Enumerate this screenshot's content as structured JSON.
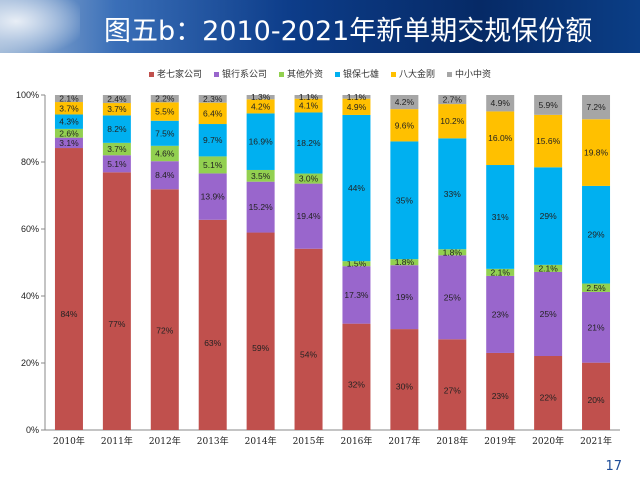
{
  "header": {
    "title": "图五b：2010-2021年新单期交规保份额"
  },
  "page_number": "17",
  "chart_data": {
    "type": "bar",
    "stacked": true,
    "title": "",
    "xlabel": "",
    "ylabel": "",
    "ylim": [
      0,
      100
    ],
    "yticks": [
      "0%",
      "20%",
      "40%",
      "60%",
      "80%",
      "100%"
    ],
    "legend_position": "top",
    "categories": [
      "2010年",
      "2011年",
      "2012年",
      "2013年",
      "2014年",
      "2015年",
      "2016年",
      "2017年",
      "2018年",
      "2019年",
      "2020年",
      "2021年"
    ],
    "series": [
      {
        "name": "老七家公司",
        "color": "#c0504d",
        "values": [
          84,
          77,
          72,
          63,
          59,
          54,
          32,
          30,
          27,
          23,
          22,
          20
        ],
        "labels": [
          "84%",
          "77%",
          "72%",
          "63%",
          "59%",
          "54%",
          "32%",
          "30%",
          "27%",
          "23%",
          "22%",
          "20%"
        ]
      },
      {
        "name": "银行系公司",
        "color": "#9966cc",
        "values": [
          3.1,
          5.1,
          8.4,
          13.9,
          15.2,
          19.4,
          17.3,
          19,
          25,
          23,
          25,
          21
        ],
        "labels": [
          "3.1%",
          "5.1%",
          "8.4%",
          "13.9%",
          "15.2%",
          "19.4%",
          "17.3%",
          "19%",
          "25%",
          "23%",
          "25%",
          "21%"
        ]
      },
      {
        "name": "其他外资",
        "color": "#92d050",
        "values": [
          2.6,
          3.7,
          4.6,
          5.1,
          3.5,
          3.0,
          1.5,
          1.8,
          1.8,
          2.1,
          2.1,
          2.5
        ],
        "labels": [
          "2.6%",
          "3.7%",
          "4.6%",
          "5.1%",
          "3.5%",
          "3.0%",
          "1.5%",
          "1.8%",
          "1.8%",
          "2.1%",
          "2.1%",
          "2.5%"
        ]
      },
      {
        "name": "银保七雄",
        "color": "#00b0f0",
        "values": [
          4.3,
          8.2,
          7.5,
          9.7,
          16.9,
          18.2,
          44,
          35,
          33,
          31,
          29,
          29
        ],
        "labels": [
          "4.3%",
          "8.2%",
          "7.5%",
          "9.7%",
          "16.9%",
          "18.2%",
          "44%",
          "35%",
          "33%",
          "31%",
          "29%",
          "29%"
        ]
      },
      {
        "name": "八大金刚",
        "color": "#ffc000",
        "values": [
          3.7,
          3.7,
          5.5,
          6.4,
          4.2,
          4.1,
          4.9,
          9.6,
          10.2,
          16.0,
          15.6,
          19.8
        ],
        "labels": [
          "3.7%",
          "3.7%",
          "5.5%",
          "6.4%",
          "4.2%",
          "4.1%",
          "4.9%",
          "9.6%",
          "10.2%",
          "16.0%",
          "15.6%",
          "19.8%"
        ]
      },
      {
        "name": "中小中资",
        "color": "#a6a6a6",
        "values": [
          2.1,
          2.4,
          2.2,
          2.3,
          1.3,
          1.1,
          1.1,
          4.2,
          2.7,
          4.9,
          5.9,
          7.2
        ],
        "labels": [
          "2.1%",
          "2.4%",
          "2.2%",
          "2.3%",
          "1.3%",
          "1.1%",
          "1.1%",
          "4.2%",
          "2.7%",
          "4.9%",
          "5.9%",
          "7.2%"
        ]
      }
    ]
  }
}
